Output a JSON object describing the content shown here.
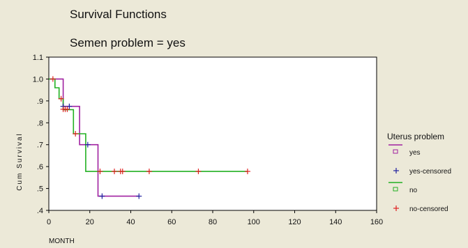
{
  "chart_data": {
    "type": "line",
    "title": "Survival Functions",
    "subtitle": "Semen problem = yes",
    "xlabel": "MONTH",
    "ylabel": "Cum Survival",
    "xlim": [
      0,
      160
    ],
    "ylim": [
      0.4,
      1.1
    ],
    "x_ticks": [
      "0",
      "20",
      "40",
      "60",
      "80",
      "100",
      "120",
      "140",
      "160"
    ],
    "y_ticks": [
      ".4",
      ".5",
      ".6",
      ".7",
      ".8",
      ".9",
      "1.0",
      "1.1"
    ],
    "legend_title": "Uterus problem",
    "legend_position": "right",
    "grid": false,
    "series": [
      {
        "name": "yes",
        "color": "#a020a0",
        "steps": [
          [
            0,
            1.0
          ],
          [
            7,
            1.0
          ],
          [
            7,
            0.875
          ],
          [
            15,
            0.875
          ],
          [
            15,
            0.7
          ],
          [
            24,
            0.7
          ],
          [
            24,
            0.465
          ],
          [
            44,
            0.465
          ]
        ]
      },
      {
        "name": "no",
        "color": "#22b022",
        "steps": [
          [
            0,
            1.0
          ],
          [
            3,
            1.0
          ],
          [
            3,
            0.96
          ],
          [
            5,
            0.96
          ],
          [
            5,
            0.91
          ],
          [
            7,
            0.91
          ],
          [
            7,
            0.86
          ],
          [
            12,
            0.86
          ],
          [
            12,
            0.75
          ],
          [
            18,
            0.75
          ],
          [
            18,
            0.578
          ],
          [
            97,
            0.578
          ]
        ]
      }
    ],
    "censored": [
      {
        "name": "yes-censored",
        "color": "#2020a0",
        "points": [
          [
            7,
            0.875
          ],
          [
            10,
            0.875
          ],
          [
            19,
            0.7
          ],
          [
            26,
            0.465
          ],
          [
            44,
            0.465
          ]
        ]
      },
      {
        "name": "no-censored",
        "color": "#e02020",
        "points": [
          [
            2,
            1.0
          ],
          [
            6,
            0.91
          ],
          [
            7,
            0.862
          ],
          [
            8,
            0.862
          ],
          [
            9,
            0.862
          ],
          [
            13,
            0.75
          ],
          [
            25,
            0.578
          ],
          [
            32,
            0.578
          ],
          [
            35,
            0.578
          ],
          [
            36,
            0.578
          ],
          [
            49,
            0.578
          ],
          [
            73,
            0.578
          ],
          [
            97,
            0.578
          ]
        ]
      }
    ]
  }
}
